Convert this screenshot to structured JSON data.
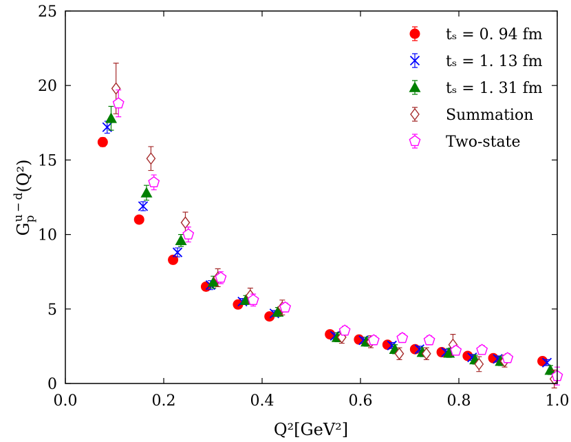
{
  "chart_data": {
    "type": "scatter",
    "title": "",
    "xlabel": "Q²[GeV²]",
    "ylabel_main": "G",
    "ylabel_sub": "p",
    "ylabel_sup": "u − d",
    "ylabel_tail": "(Q²)",
    "xlim": [
      0.0,
      1.0
    ],
    "ylim": [
      0,
      25
    ],
    "xticks": [
      "0.0",
      "0.2",
      "0.4",
      "0.6",
      "0.8",
      "1.0"
    ],
    "yticks": [
      "0",
      "5",
      "10",
      "15",
      "20",
      "25"
    ],
    "legend_position": "top-right",
    "grid": false,
    "series": [
      {
        "name": "tₛ = 0. 94 fm",
        "marker": "circle",
        "color": "#ff0000",
        "points": [
          {
            "x": 0.076,
            "y": 16.2,
            "e": 0.3
          },
          {
            "x": 0.15,
            "y": 11.0,
            "e": 0.2
          },
          {
            "x": 0.219,
            "y": 8.3,
            "e": 0.2
          },
          {
            "x": 0.286,
            "y": 6.5,
            "e": 0.2
          },
          {
            "x": 0.351,
            "y": 5.3,
            "e": 0.2
          },
          {
            "x": 0.415,
            "y": 4.5,
            "e": 0.2
          },
          {
            "x": 0.538,
            "y": 3.3,
            "e": 0.2
          },
          {
            "x": 0.597,
            "y": 2.95,
            "e": 0.2
          },
          {
            "x": 0.655,
            "y": 2.6,
            "e": 0.2
          },
          {
            "x": 0.711,
            "y": 2.3,
            "e": 0.2
          },
          {
            "x": 0.765,
            "y": 2.1,
            "e": 0.2
          },
          {
            "x": 0.818,
            "y": 1.85,
            "e": 0.2
          },
          {
            "x": 0.87,
            "y": 1.7,
            "e": 0.2
          },
          {
            "x": 0.97,
            "y": 1.5,
            "e": 0.2
          }
        ]
      },
      {
        "name": "tₛ = 1. 13 fm",
        "marker": "x",
        "color": "#0000ff",
        "points": [
          {
            "x": 0.085,
            "y": 17.2,
            "e": 0.4
          },
          {
            "x": 0.158,
            "y": 11.9,
            "e": 0.3
          },
          {
            "x": 0.228,
            "y": 8.8,
            "e": 0.3
          },
          {
            "x": 0.295,
            "y": 6.6,
            "e": 0.3
          },
          {
            "x": 0.36,
            "y": 5.5,
            "e": 0.2
          },
          {
            "x": 0.425,
            "y": 4.7,
            "e": 0.2
          },
          {
            "x": 0.548,
            "y": 3.2,
            "e": 0.2
          },
          {
            "x": 0.606,
            "y": 2.9,
            "e": 0.2
          },
          {
            "x": 0.664,
            "y": 2.55,
            "e": 0.2
          },
          {
            "x": 0.72,
            "y": 2.3,
            "e": 0.2
          },
          {
            "x": 0.774,
            "y": 2.1,
            "e": 0.2
          },
          {
            "x": 0.827,
            "y": 1.75,
            "e": 0.2
          },
          {
            "x": 0.879,
            "y": 1.65,
            "e": 0.2
          },
          {
            "x": 0.979,
            "y": 1.4,
            "e": 0.2
          }
        ]
      },
      {
        "name": "tₛ = 1. 31 fm",
        "marker": "triangle",
        "color": "#007f00",
        "points": [
          {
            "x": 0.093,
            "y": 17.8,
            "e": 0.8
          },
          {
            "x": 0.165,
            "y": 12.8,
            "e": 0.5
          },
          {
            "x": 0.235,
            "y": 9.6,
            "e": 0.4
          },
          {
            "x": 0.301,
            "y": 6.8,
            "e": 0.4
          },
          {
            "x": 0.367,
            "y": 5.6,
            "e": 0.3
          },
          {
            "x": 0.432,
            "y": 4.8,
            "e": 0.3
          },
          {
            "x": 0.553,
            "y": 3.1,
            "e": 0.3
          },
          {
            "x": 0.612,
            "y": 2.8,
            "e": 0.3
          },
          {
            "x": 0.67,
            "y": 2.3,
            "e": 0.3
          },
          {
            "x": 0.726,
            "y": 2.1,
            "e": 0.3
          },
          {
            "x": 0.78,
            "y": 2.05,
            "e": 0.3
          },
          {
            "x": 0.833,
            "y": 1.6,
            "e": 0.3
          },
          {
            "x": 0.885,
            "y": 1.5,
            "e": 0.3
          },
          {
            "x": 0.986,
            "y": 0.9,
            "e": 0.3
          }
        ]
      },
      {
        "name": "Summation",
        "marker": "diamond",
        "color": "#a52a2a",
        "points": [
          {
            "x": 0.103,
            "y": 19.8,
            "e": 1.7
          },
          {
            "x": 0.174,
            "y": 15.1,
            "e": 0.8
          },
          {
            "x": 0.244,
            "y": 10.8,
            "e": 0.7
          },
          {
            "x": 0.31,
            "y": 7.1,
            "e": 0.6
          },
          {
            "x": 0.376,
            "y": 5.9,
            "e": 0.5
          },
          {
            "x": 0.441,
            "y": 5.1,
            "e": 0.5
          },
          {
            "x": 0.562,
            "y": 3.1,
            "e": 0.4
          },
          {
            "x": 0.621,
            "y": 2.8,
            "e": 0.4
          },
          {
            "x": 0.679,
            "y": 2.0,
            "e": 0.4
          },
          {
            "x": 0.734,
            "y": 2.0,
            "e": 0.4
          },
          {
            "x": 0.788,
            "y": 2.6,
            "e": 0.7
          },
          {
            "x": 0.841,
            "y": 1.3,
            "e": 0.5
          },
          {
            "x": 0.893,
            "y": 1.5,
            "e": 0.4
          },
          {
            "x": 0.994,
            "y": 0.3,
            "e": 0.6
          }
        ]
      },
      {
        "name": "Two-state",
        "marker": "pentagon",
        "color": "#ff00ff",
        "points": [
          {
            "x": 0.108,
            "y": 18.8,
            "e": 0.9
          },
          {
            "x": 0.18,
            "y": 13.5,
            "e": 0.5
          },
          {
            "x": 0.25,
            "y": 10.0,
            "e": 0.5
          },
          {
            "x": 0.316,
            "y": 7.1,
            "e": 0.4
          },
          {
            "x": 0.382,
            "y": 5.6,
            "e": 0.4
          },
          {
            "x": 0.447,
            "y": 5.1,
            "e": 0.3
          },
          {
            "x": 0.568,
            "y": 3.55,
            "e": 0.3
          },
          {
            "x": 0.627,
            "y": 2.9,
            "e": 0.3
          },
          {
            "x": 0.685,
            "y": 3.05,
            "e": 0.3
          },
          {
            "x": 0.74,
            "y": 2.9,
            "e": 0.3
          },
          {
            "x": 0.794,
            "y": 2.2,
            "e": 0.3
          },
          {
            "x": 0.847,
            "y": 2.25,
            "e": 0.3
          },
          {
            "x": 0.899,
            "y": 1.7,
            "e": 0.3
          },
          {
            "x": 1.0,
            "y": 0.5,
            "e": 0.6
          }
        ]
      }
    ]
  }
}
